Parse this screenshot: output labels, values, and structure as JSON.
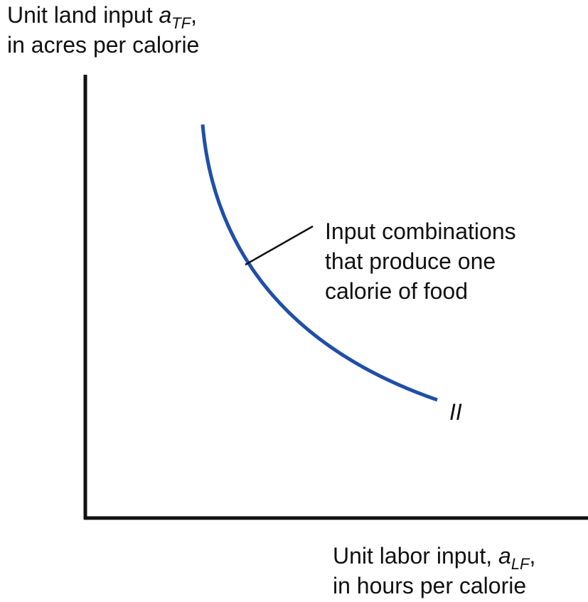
{
  "y_axis_label": {
    "line1": {
      "text": "Unit land input ",
      "variable": "a",
      "subscript": "TF",
      "suffix": ","
    },
    "line2": "in acres per calorie"
  },
  "x_axis_label": {
    "line1": {
      "text": "Unit labor input, ",
      "variable": "a",
      "subscript": "LF",
      "suffix": ","
    },
    "line2": "in hours per calorie"
  },
  "annotation": [
    "Input combinations",
    "that produce one",
    "calorie of food"
  ],
  "curve_label": "II"
}
